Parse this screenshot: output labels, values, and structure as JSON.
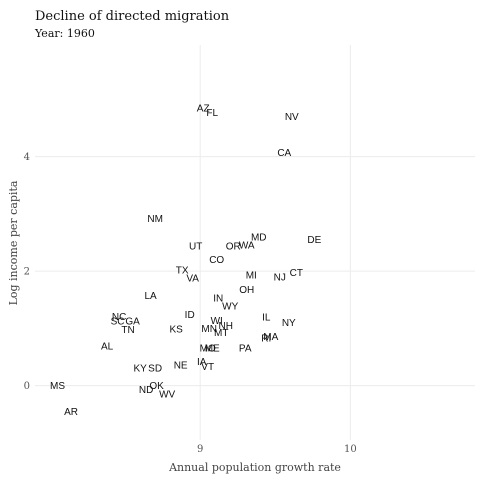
{
  "chart_data": {
    "type": "scatter",
    "title": "Decline of directed migration",
    "subtitle": "Year: 1960",
    "xlabel": "Annual population growth rate",
    "ylabel": "Log income per capita",
    "xlim": [
      7.9,
      10.83
    ],
    "ylim": [
      -0.95,
      5.95
    ],
    "x_ticks": [
      9,
      10
    ],
    "y_ticks": [
      0,
      2,
      4
    ],
    "grid": true,
    "legend": "none",
    "points": [
      {
        "label": "AZ",
        "x": 9.02,
        "y": 4.85
      },
      {
        "label": "FL",
        "x": 9.08,
        "y": 4.77
      },
      {
        "label": "NV",
        "x": 9.61,
        "y": 4.7
      },
      {
        "label": "CA",
        "x": 9.56,
        "y": 4.07
      },
      {
        "label": "NM",
        "x": 8.7,
        "y": 2.92
      },
      {
        "label": "MD",
        "x": 9.39,
        "y": 2.6
      },
      {
        "label": "DE",
        "x": 9.76,
        "y": 2.55
      },
      {
        "label": "UT",
        "x": 8.97,
        "y": 2.44
      },
      {
        "label": "OR",
        "x": 9.22,
        "y": 2.44
      },
      {
        "label": "WA",
        "x": 9.31,
        "y": 2.46
      },
      {
        "label": "CO",
        "x": 9.11,
        "y": 2.2
      },
      {
        "label": "TX",
        "x": 8.88,
        "y": 2.02
      },
      {
        "label": "VA",
        "x": 8.95,
        "y": 1.88
      },
      {
        "label": "MI",
        "x": 9.34,
        "y": 1.93
      },
      {
        "label": "NJ",
        "x": 9.53,
        "y": 1.9
      },
      {
        "label": "CT",
        "x": 9.64,
        "y": 1.98
      },
      {
        "label": "OH",
        "x": 9.31,
        "y": 1.68
      },
      {
        "label": "LA",
        "x": 8.67,
        "y": 1.57
      },
      {
        "label": "IN",
        "x": 9.12,
        "y": 1.53
      },
      {
        "label": "WY",
        "x": 9.2,
        "y": 1.39
      },
      {
        "label": "ID",
        "x": 8.93,
        "y": 1.24
      },
      {
        "label": "IL",
        "x": 9.44,
        "y": 1.2
      },
      {
        "label": "NC",
        "x": 8.46,
        "y": 1.21
      },
      {
        "label": "SC",
        "x": 8.45,
        "y": 1.13
      },
      {
        "label": "GA",
        "x": 8.55,
        "y": 1.13
      },
      {
        "label": "WI",
        "x": 9.11,
        "y": 1.14
      },
      {
        "label": "NY",
        "x": 9.59,
        "y": 1.1
      },
      {
        "label": "TN",
        "x": 8.52,
        "y": 0.98
      },
      {
        "label": "KS",
        "x": 8.84,
        "y": 0.99
      },
      {
        "label": "MN",
        "x": 9.06,
        "y": 1.0
      },
      {
        "label": "NH",
        "x": 9.17,
        "y": 1.05
      },
      {
        "label": "MT",
        "x": 9.14,
        "y": 0.93
      },
      {
        "label": "RI",
        "x": 9.44,
        "y": 0.83
      },
      {
        "label": "MA",
        "x": 9.47,
        "y": 0.86
      },
      {
        "label": "AL",
        "x": 8.38,
        "y": 0.69
      },
      {
        "label": "MO",
        "x": 9.05,
        "y": 0.66
      },
      {
        "label": "ME",
        "x": 9.08,
        "y": 0.66
      },
      {
        "label": "PA",
        "x": 9.3,
        "y": 0.66
      },
      {
        "label": "KY",
        "x": 8.6,
        "y": 0.31
      },
      {
        "label": "SD",
        "x": 8.7,
        "y": 0.31
      },
      {
        "label": "NE",
        "x": 8.87,
        "y": 0.36
      },
      {
        "label": "IA",
        "x": 9.01,
        "y": 0.42
      },
      {
        "label": "VT",
        "x": 9.05,
        "y": 0.33
      },
      {
        "label": "OK",
        "x": 8.71,
        "y": 0.0
      },
      {
        "label": "ND",
        "x": 8.64,
        "y": -0.07
      },
      {
        "label": "WV",
        "x": 8.78,
        "y": -0.15
      },
      {
        "label": "MS",
        "x": 8.05,
        "y": 0.0
      },
      {
        "label": "AR",
        "x": 8.14,
        "y": -0.45
      }
    ]
  }
}
